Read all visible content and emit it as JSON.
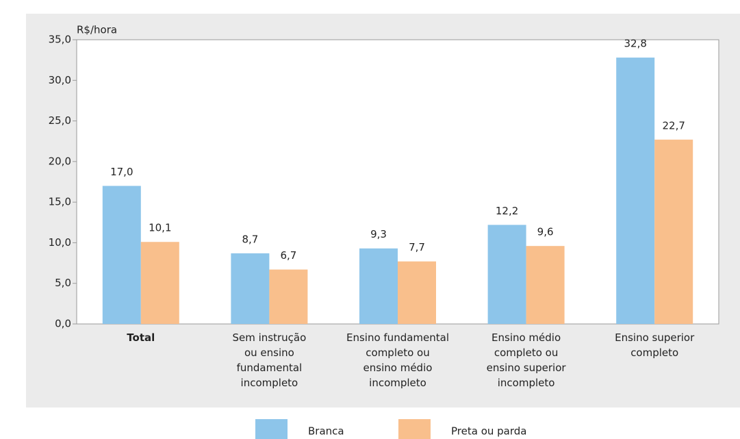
{
  "chart_data": {
    "type": "bar",
    "y_label": "R$/hora",
    "categories": [
      "Total",
      "Sem instrução\nou ensino\nfundamental\nincompleto",
      "Ensino fundamental\ncompleto ou\nensino médio\nincompleto",
      "Ensino médio\ncompleto ou\nensino superior\nincompleto",
      "Ensino superior\ncompleto"
    ],
    "series": [
      {
        "name": "Branca",
        "color": "#8dc5ea",
        "values": [
          17.0,
          8.7,
          9.3,
          12.2,
          32.8
        ],
        "value_labels": [
          "17,0",
          "8,7",
          "9,3",
          "12,2",
          "32,8"
        ]
      },
      {
        "name": "Preta ou parda",
        "color": "#f9bf8c",
        "values": [
          10.1,
          6.7,
          7.7,
          9.6,
          22.7
        ],
        "value_labels": [
          "10,1",
          "6,7",
          "7,7",
          "9,6",
          "22,7"
        ]
      }
    ],
    "ylim": [
      0,
      35
    ],
    "yticks": [
      {
        "value": 0,
        "label": "0,0"
      },
      {
        "value": 5,
        "label": "5,0"
      },
      {
        "value": 10,
        "label": "10,0"
      },
      {
        "value": 15,
        "label": "15,0"
      },
      {
        "value": 20,
        "label": "20,0"
      },
      {
        "value": 25,
        "label": "25,0"
      },
      {
        "value": 30,
        "label": "30,0"
      },
      {
        "value": 35,
        "label": "35,0"
      }
    ]
  }
}
